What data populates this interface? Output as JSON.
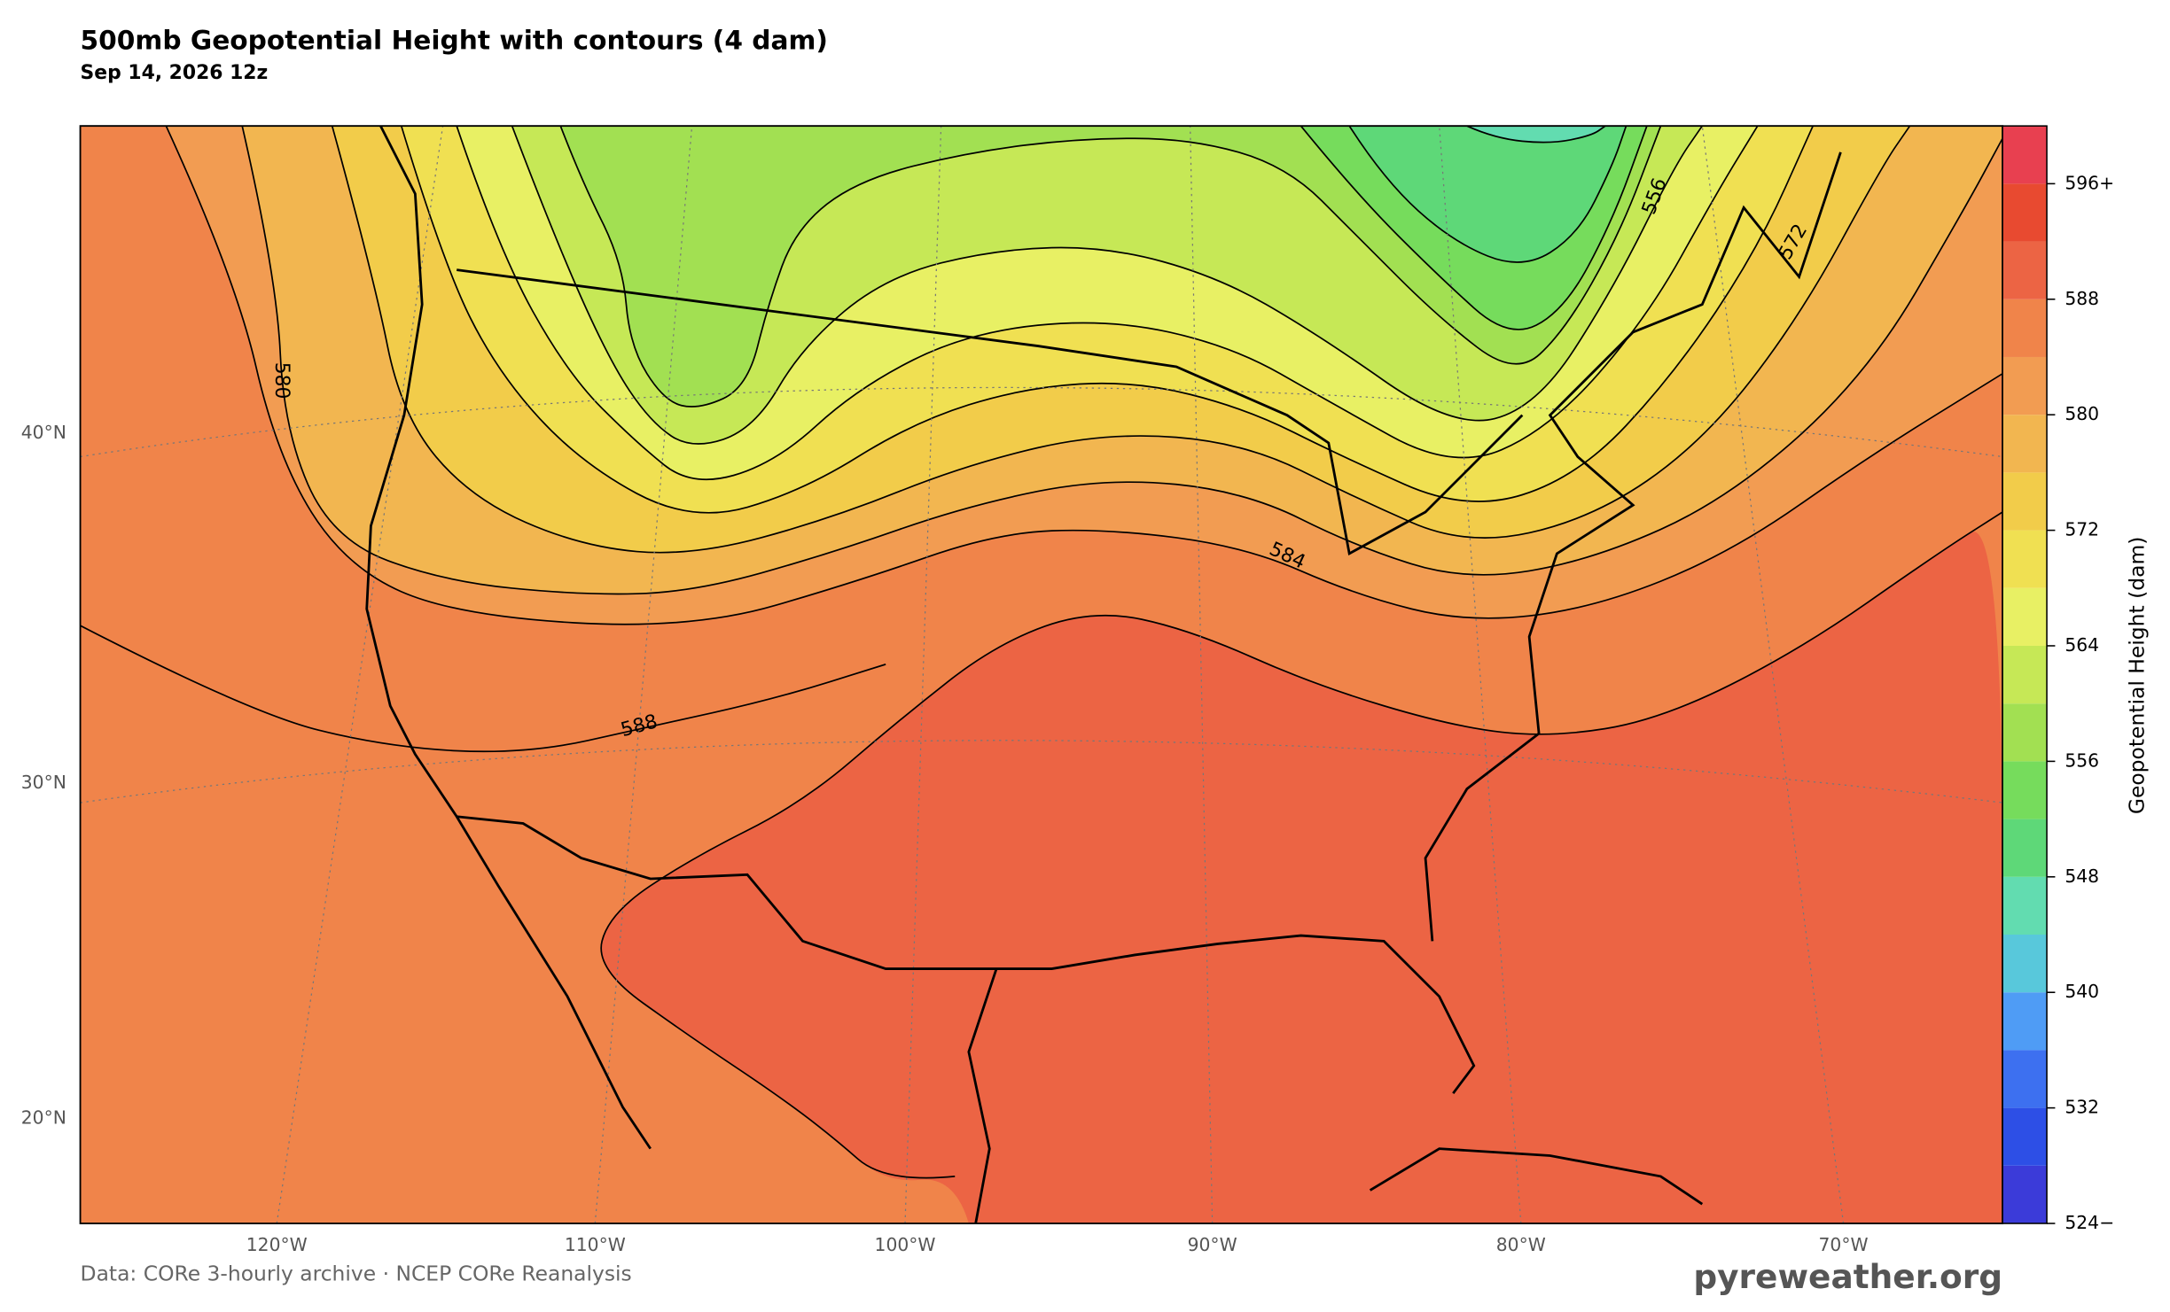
{
  "header": {
    "title": "500mb Geopotential Height with contours (4 dam)",
    "subtitle": "Sep 14, 2026 12z"
  },
  "map": {
    "lat_labels": [
      "40°N",
      "30°N",
      "20°N"
    ],
    "lon_labels": [
      "120°W",
      "110°W",
      "100°W",
      "90°W",
      "80°W",
      "70°W"
    ],
    "contour_levels": [
      548,
      552,
      556,
      560,
      564,
      568,
      572,
      576,
      580,
      584,
      588
    ],
    "contour_labels": [
      580,
      588,
      584,
      556,
      572
    ]
  },
  "colorbar": {
    "label": "Geopotential Height (dam)",
    "levels": [
      524,
      528,
      532,
      536,
      540,
      544,
      548,
      552,
      556,
      560,
      564,
      568,
      572,
      576,
      580,
      584,
      588,
      592,
      596,
      600
    ],
    "colors": [
      "#3b3bd9",
      "#2d4fe6",
      "#3d70f0",
      "#4f9cf5",
      "#58c8db",
      "#62dcb0",
      "#5ed878",
      "#76dc5c",
      "#a2e052",
      "#c6e856",
      "#e8f064",
      "#f0e052",
      "#f2cc4a",
      "#f2b650",
      "#f29c52",
      "#f0844a",
      "#ec6444",
      "#e84a30",
      "#e84050"
    ],
    "ticks": [
      {
        "value": 524,
        "label": "524−"
      },
      532,
      540,
      548,
      556,
      564,
      572,
      580,
      588,
      {
        "value": 596,
        "label": "596+"
      }
    ]
  },
  "footer": {
    "source": "Data: CORe 3-hourly archive · NCEP CORe Reanalysis",
    "watermark": "pyreweather.org"
  }
}
